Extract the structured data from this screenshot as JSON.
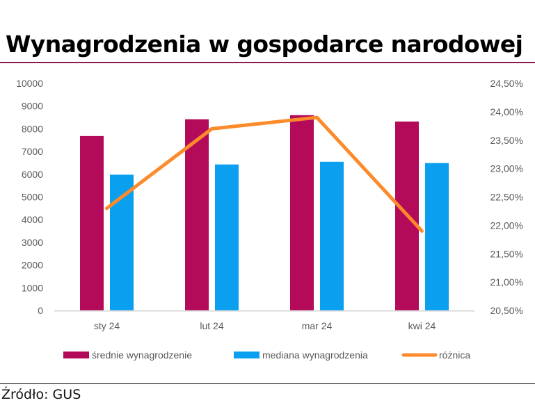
{
  "header": {
    "title": "Wynagrodzenia w gospodarce narodowej"
  },
  "footer": {
    "source": "Źródło: GUS"
  },
  "colors": {
    "mean": "#b30b5a",
    "median": "#0ba0ef",
    "difference": "#fd8a2b",
    "rule": "#8b1a4f",
    "axis": "#d9d9d9",
    "tick_text": "#595959"
  },
  "chart_data": {
    "type": "bar",
    "title": "Wynagrodzenia w gospodarce narodowej",
    "categories": [
      "sty 24",
      "lut 24",
      "mar 24",
      "kwi 24"
    ],
    "series": [
      {
        "name": "średnie wynagrodzenie",
        "type": "bar",
        "axis": "left",
        "values": [
          7680,
          8420,
          8600,
          8320
        ]
      },
      {
        "name": "mediana wynagrodzenia",
        "type": "bar",
        "axis": "left",
        "values": [
          5980,
          6430,
          6550,
          6490
        ]
      },
      {
        "name": "różnica",
        "type": "line",
        "axis": "right",
        "values": [
          22.3,
          23.7,
          23.9,
          21.9
        ]
      }
    ],
    "y_left": {
      "min": 0,
      "max": 10000,
      "step": 1000,
      "ticks": [
        "0",
        "1000",
        "2000",
        "3000",
        "4000",
        "5000",
        "6000",
        "7000",
        "8000",
        "9000",
        "10000"
      ]
    },
    "y_right": {
      "min": 20.5,
      "max": 24.5,
      "step": 0.5,
      "ticks": [
        "20,50%",
        "21,00%",
        "21,50%",
        "22,00%",
        "22,50%",
        "23,00%",
        "23,50%",
        "24,00%",
        "24,50%"
      ]
    },
    "xlabel": "",
    "ylabel": "",
    "grid": false,
    "legend": "bottom"
  }
}
